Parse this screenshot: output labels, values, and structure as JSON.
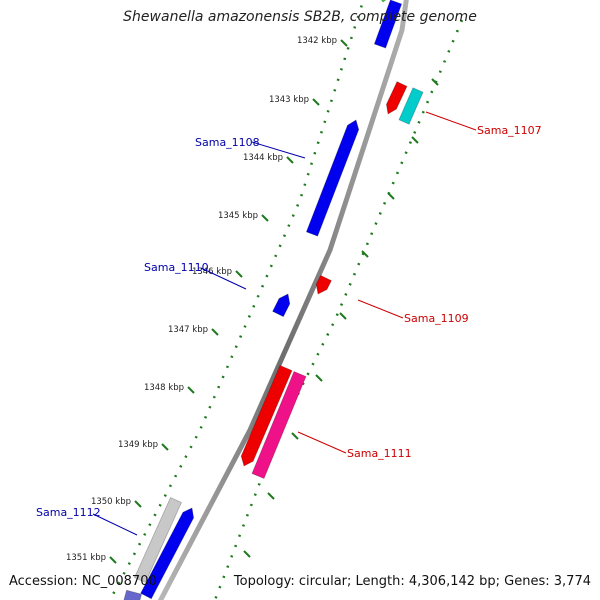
{
  "title": "Shewanella amazonensis SB2B, complete genome",
  "footer": {
    "accession": "Accession: NC_008700",
    "summary": "Topology: circular; Length: 4,306,142 bp; Genes: 3,774"
  },
  "ticks": [
    "1342 kbp",
    "1343 kbp",
    "1344 kbp",
    "1345 kbp",
    "1346 kbp",
    "1347 kbp",
    "1348 kbp",
    "1349 kbp",
    "1350 kbp",
    "1351 kbp"
  ],
  "gene_labels": [
    {
      "id": "sama-1107",
      "text": "Sama_1107",
      "strand": "reverse",
      "color": "#cc0000"
    },
    {
      "id": "sama-1108",
      "text": "Sama_1108",
      "strand": "forward",
      "color": "#0000aa"
    },
    {
      "id": "sama-1109",
      "text": "Sama_1109",
      "strand": "reverse",
      "color": "#cc0000"
    },
    {
      "id": "sama-1110",
      "text": "Sama_1110",
      "strand": "forward",
      "color": "#0000aa"
    },
    {
      "id": "sama-1111",
      "text": "Sama_1111",
      "strand": "reverse",
      "color": "#cc0000"
    },
    {
      "id": "sama-1112",
      "text": "Sama_1112",
      "strand": "forward",
      "color": "#0000aa"
    }
  ],
  "colors": {
    "backbone": "#8c8c8c",
    "forward_cds": "#0000ee",
    "reverse_cds": "#ee0000",
    "reverse_cds_alt": "#ee1188",
    "teal_cds": "#00cccc",
    "gray_feature": "#c8c8c8",
    "green_feature": "#33cc33",
    "dotted_track": "#1f7a1f"
  }
}
